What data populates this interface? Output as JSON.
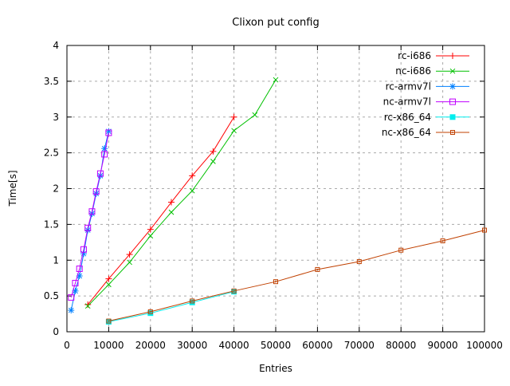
{
  "title": "Clixon put config",
  "chart_data": {
    "type": "line",
    "title": "Clixon put config",
    "xlabel": "Entries",
    "ylabel": "Time[s]",
    "xlim": [
      0,
      100000
    ],
    "ylim": [
      0,
      4
    ],
    "x_tick_step": 10000,
    "y_tick_step": 0.5,
    "x_tick_labels": [
      "0",
      "10000",
      "20000",
      "30000",
      "40000",
      "50000",
      "60000",
      "70000",
      "80000",
      "90000",
      "100000"
    ],
    "y_tick_labels": [
      "0",
      "0.5",
      "1",
      "1.5",
      "2",
      "2.5",
      "3",
      "3.5",
      "4"
    ],
    "grid": true,
    "grid_color": "#aaaaaa",
    "border_color": "#000000",
    "background_color": "#ffffff",
    "legend_position": "top-right-inside",
    "series": [
      {
        "name": "rc-i686",
        "color": "#ff0000",
        "marker": "plus",
        "points": [
          [
            5000,
            0.38
          ],
          [
            10000,
            0.74
          ],
          [
            15000,
            1.08
          ],
          [
            20000,
            1.43
          ],
          [
            25000,
            1.81
          ],
          [
            30000,
            2.18
          ],
          [
            35000,
            2.52
          ],
          [
            40000,
            3.0
          ]
        ]
      },
      {
        "name": "nc-i686",
        "color": "#00c000",
        "marker": "cross",
        "points": [
          [
            5000,
            0.36
          ],
          [
            10000,
            0.66
          ],
          [
            15000,
            0.97
          ],
          [
            20000,
            1.34
          ],
          [
            25000,
            1.67
          ],
          [
            30000,
            1.97
          ],
          [
            35000,
            2.38
          ],
          [
            40000,
            2.81
          ],
          [
            45000,
            3.03
          ],
          [
            50000,
            3.52
          ]
        ]
      },
      {
        "name": "rc-armv7l",
        "color": "#0080ff",
        "marker": "asterisk",
        "points": [
          [
            1000,
            0.3
          ],
          [
            2000,
            0.57
          ],
          [
            3000,
            0.78
          ],
          [
            4000,
            1.09
          ],
          [
            5000,
            1.42
          ],
          [
            6000,
            1.65
          ],
          [
            7000,
            1.93
          ],
          [
            8000,
            2.18
          ],
          [
            9000,
            2.56
          ],
          [
            10000,
            2.8
          ]
        ]
      },
      {
        "name": "nc-armv7l",
        "color": "#c000ff",
        "marker": "open-square",
        "points": [
          [
            1000,
            0.48
          ],
          [
            2000,
            0.68
          ],
          [
            3000,
            0.88
          ],
          [
            4000,
            1.15
          ],
          [
            5000,
            1.45
          ],
          [
            6000,
            1.68
          ],
          [
            7000,
            1.96
          ],
          [
            8000,
            2.21
          ],
          [
            9000,
            2.48
          ],
          [
            10000,
            2.78
          ]
        ]
      },
      {
        "name": "rc-x86_64",
        "color": "#00eeee",
        "marker": "filled-square",
        "points": [
          [
            10000,
            0.14
          ],
          [
            20000,
            0.26
          ],
          [
            30000,
            0.41
          ],
          [
            40000,
            0.56
          ]
        ]
      },
      {
        "name": "nc-x86_64",
        "color": "#c04000",
        "marker": "dotted-square",
        "points": [
          [
            10000,
            0.15
          ],
          [
            20000,
            0.28
          ],
          [
            30000,
            0.43
          ],
          [
            40000,
            0.57
          ],
          [
            50000,
            0.7
          ],
          [
            60000,
            0.87
          ],
          [
            70000,
            0.98
          ],
          [
            80000,
            1.14
          ],
          [
            90000,
            1.27
          ],
          [
            100000,
            1.42
          ]
        ]
      }
    ]
  }
}
